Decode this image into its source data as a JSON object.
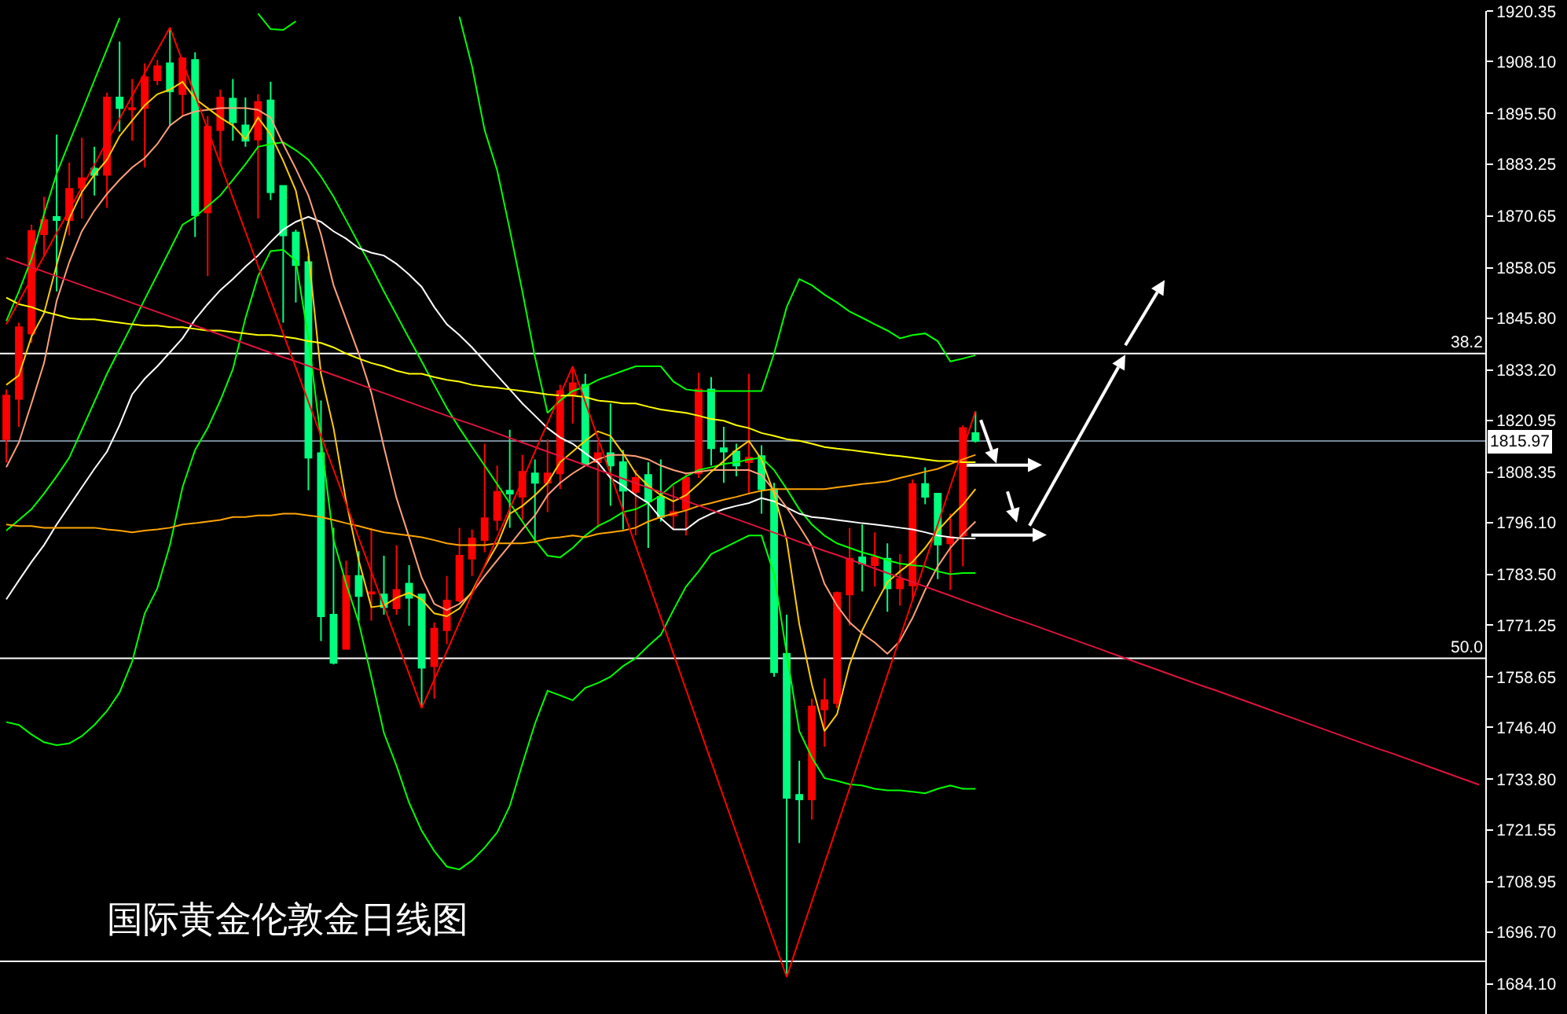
{
  "chart_data": {
    "type": "candlestick",
    "title": "国际黄金伦敦金日线图",
    "categories": [
      null,
      null,
      null,
      null,
      null,
      null,
      null,
      null,
      null,
      null,
      null,
      null,
      null,
      null,
      null,
      null,
      null,
      null,
      null,
      null,
      null,
      null,
      null,
      null,
      null,
      null,
      null,
      null,
      null,
      null,
      null,
      null,
      null,
      null,
      null,
      null,
      null,
      null,
      null,
      null,
      null,
      null,
      null,
      null,
      null,
      null,
      null,
      null,
      null,
      null,
      null,
      null,
      null,
      null,
      null,
      null,
      null,
      null,
      null,
      null,
      null,
      null,
      null,
      null,
      null,
      null,
      null,
      null,
      null,
      null,
      null,
      null,
      null,
      null,
      null,
      null,
      null,
      null,
      null,
      null,
      null,
      null,
      null,
      null,
      null,
      null,
      null,
      null,
      null,
      null,
      null,
      null,
      null,
      null,
      null,
      null,
      null,
      null,
      null,
      null,
      null,
      null,
      null,
      null,
      null,
      null,
      null,
      null,
      null,
      null,
      null,
      null,
      null,
      null,
      null,
      null,
      null,
      null
    ],
    "ohlc": [
      [
        1816.4,
        1828.5,
        1810.7,
        1827.0
      ],
      [
        1826.2,
        1844.7,
        1819.4,
        1843.6
      ],
      [
        1842.1,
        1868.5,
        1839.8,
        1867.0
      ],
      [
        1866.2,
        1875.3,
        1860.9,
        1869.6
      ],
      [
        1870.4,
        1890.4,
        1852.3,
        1869.6
      ],
      [
        1869.6,
        1883.6,
        1865.9,
        1877.2
      ],
      [
        1877.5,
        1889.6,
        1870.0,
        1879.8
      ],
      [
        1882.1,
        1887.4,
        1875.6,
        1880.6
      ],
      [
        1880.6,
        1900.6,
        1872.6,
        1899.4
      ],
      [
        1899.4,
        1913.0,
        1891.1,
        1896.8
      ],
      [
        1896.5,
        1903.9,
        1888.9,
        1896.8
      ],
      [
        1896.8,
        1907.7,
        1882.4,
        1904.3
      ],
      [
        1903.6,
        1908.5,
        1902.4,
        1907.0
      ],
      [
        1907.7,
        1916.4,
        1892.6,
        1900.9
      ],
      [
        1900.2,
        1909.2,
        1894.9,
        1908.9
      ],
      [
        1908.5,
        1910.4,
        1865.5,
        1870.8
      ],
      [
        1871.5,
        1894.9,
        1856.0,
        1892.3
      ],
      [
        1891.5,
        1901.3,
        1883.6,
        1899.4
      ],
      [
        1899.1,
        1903.9,
        1888.9,
        1893.4
      ],
      [
        1892.6,
        1899.4,
        1887.4,
        1888.9
      ],
      [
        1889.2,
        1900.2,
        1870.0,
        1898.3
      ],
      [
        1898.7,
        1903.2,
        1874.5,
        1876.4
      ],
      [
        1877.9,
        1877.9,
        1844.7,
        1865.9
      ],
      [
        1866.6,
        1867.3,
        1849.6,
        1858.7
      ],
      [
        1859.4,
        1860.9,
        1804.0,
        1811.9
      ],
      [
        1813.0,
        1825.8,
        1767.4,
        1773.4
      ],
      [
        1773.8,
        1794.9,
        1761.7,
        1762.1
      ],
      [
        1765.5,
        1786.9,
        1765.5,
        1783.2
      ],
      [
        1783.2,
        1789.2,
        1772.3,
        1778.3
      ],
      [
        1778.9,
        1794.9,
        1772.3,
        1779.2
      ],
      [
        1778.7,
        1788.1,
        1773.8,
        1775.6
      ],
      [
        1775.3,
        1790.7,
        1773.8,
        1779.8
      ],
      [
        1781.3,
        1785.8,
        1771.1,
        1777.9
      ],
      [
        1778.7,
        1778.7,
        1751.1,
        1760.9
      ],
      [
        1761.3,
        1771.9,
        1753.4,
        1770.4
      ],
      [
        1770.0,
        1783.2,
        1766.6,
        1777.2
      ],
      [
        1777.2,
        1794.9,
        1776.8,
        1788.1
      ],
      [
        1787.4,
        1794.5,
        1783.2,
        1792.3
      ],
      [
        1791.9,
        1815.3,
        1788.9,
        1797.2
      ],
      [
        1796.8,
        1810.0,
        1794.2,
        1803.6
      ],
      [
        1803.9,
        1818.7,
        1794.9,
        1803.2
      ],
      [
        1802.4,
        1812.6,
        1796.8,
        1808.5
      ],
      [
        1808.1,
        1811.5,
        1791.1,
        1805.8
      ],
      [
        1805.8,
        1816.4,
        1798.7,
        1808.1
      ],
      [
        1808.1,
        1829.6,
        1804.3,
        1828.1
      ],
      [
        1827.3,
        1834.1,
        1820.2,
        1830.0
      ],
      [
        1829.6,
        1832.3,
        1810.4,
        1810.4
      ],
      [
        1810.8,
        1815.6,
        1794.9,
        1813.0
      ],
      [
        1813.0,
        1825.1,
        1800.2,
        1810.0
      ],
      [
        1810.8,
        1813.8,
        1794.5,
        1803.9
      ],
      [
        1803.6,
        1808.9,
        1793.0,
        1807.0
      ],
      [
        1807.7,
        1810.8,
        1790.0,
        1801.3
      ],
      [
        1802.4,
        1811.5,
        1796.4,
        1797.5
      ],
      [
        1797.9,
        1805.1,
        1794.5,
        1798.7
      ],
      [
        1799.4,
        1808.1,
        1793.0,
        1807.0
      ],
      [
        1808.1,
        1832.6,
        1807.0,
        1828.5
      ],
      [
        1828.5,
        1831.5,
        1810.0,
        1814.2
      ],
      [
        1814.2,
        1819.4,
        1805.8,
        1813.4
      ],
      [
        1813.4,
        1815.3,
        1807.4,
        1810.0
      ],
      [
        1810.8,
        1832.3,
        1803.2,
        1811.9
      ],
      [
        1812.3,
        1814.9,
        1798.3,
        1804.3
      ],
      [
        1804.3,
        1805.8,
        1758.7,
        1759.8
      ],
      [
        1764.3,
        1773.8,
        1685.8,
        1729.3
      ],
      [
        1730.0,
        1738.3,
        1718.3,
        1728.9
      ],
      [
        1728.9,
        1753.4,
        1724.0,
        1751.5
      ],
      [
        1750.8,
        1758.3,
        1741.7,
        1753.0
      ],
      [
        1752.3,
        1779.4,
        1751.1,
        1779.1
      ],
      [
        1778.7,
        1794.9,
        1771.1,
        1787.4
      ],
      [
        1787.7,
        1795.7,
        1779.4,
        1786.2
      ],
      [
        1785.8,
        1793.8,
        1780.6,
        1787.7
      ],
      [
        1787.4,
        1791.1,
        1774.5,
        1780.2
      ],
      [
        1780.2,
        1788.5,
        1776.0,
        1782.4
      ],
      [
        1780.9,
        1806.6,
        1777.5,
        1805.5
      ],
      [
        1805.5,
        1809.6,
        1800.6,
        1802.4
      ],
      [
        1803.2,
        1803.2,
        1782.4,
        1790.8
      ],
      [
        1791.1,
        1798.3,
        1779.8,
        1792.6
      ],
      [
        1793.0,
        1819.8,
        1785.5,
        1819.1
      ],
      [
        1817.9,
        1823.2,
        1815.6,
        1816.0
      ],
      null,
      null,
      null,
      null,
      null,
      null,
      null,
      null,
      null,
      null,
      null,
      null,
      null,
      null,
      null,
      null,
      null,
      null,
      null,
      null,
      null,
      null,
      null,
      null,
      null,
      null,
      null,
      null,
      null,
      null,
      null,
      null,
      null,
      null,
      null,
      null,
      null,
      null,
      null,
      null
    ],
    "colors": [
      "#ff0000",
      "#ff0000",
      "#ff0000",
      "#ff0000",
      "#00ff7f",
      "#ff0000",
      "#ff0000",
      "#00ff7f",
      "#ff0000",
      "#00ff7f",
      "#ff0000",
      "#ff0000",
      "#ff0000",
      "#00ff7f",
      "#ff0000",
      "#00ff7f",
      "#ff0000",
      "#ff0000",
      "#00ff7f",
      "#00ff7f",
      "#ff0000",
      "#00ff7f",
      "#00ff7f",
      "#00ff7f",
      "#00ff7f",
      "#00ff7f",
      "#00ff7f",
      "#ff0000",
      "#00ff7f",
      "#ff0000",
      "#00ff7f",
      "#ff0000",
      "#00ff7f",
      "#00ff7f",
      "#ff0000",
      "#ff0000",
      "#ff0000",
      "#ff0000",
      "#ff0000",
      "#ff0000",
      "#00ff7f",
      "#ff0000",
      "#00ff7f",
      "#ff0000",
      "#ff0000",
      "#ff0000",
      "#00ff7f",
      "#ff0000",
      "#00ff7f",
      "#00ff7f",
      "#ff0000",
      "#00ff7f",
      "#00ff7f",
      "#ff0000",
      "#ff0000",
      "#ff0000",
      "#00ff7f",
      "#00ff7f",
      "#00ff7f",
      "#ff0000",
      "#00ff7f",
      "#00ff7f",
      "#00ff7f",
      "#00ff7f",
      "#ff0000",
      "#ff0000",
      "#ff0000",
      "#ff0000",
      "#00ff7f",
      "#ff0000",
      "#00ff7f",
      "#ff0000",
      "#ff0000",
      "#00ff7f",
      "#00ff7f",
      "#ff0000",
      "#ff0000",
      "#00ff7f",
      null,
      null,
      null,
      null,
      null,
      null,
      null,
      null,
      null,
      null,
      null,
      null,
      null,
      null,
      null,
      null,
      null,
      null,
      null,
      null,
      null,
      null,
      null,
      null,
      null,
      null,
      null,
      null,
      null,
      null,
      null,
      null,
      null,
      null,
      null,
      null,
      null,
      null,
      null,
      null
    ],
    "series": [
      {
        "type": "line",
        "color": "#00ff00",
        "values": [
          1845.1,
          1852.3,
          1860.2,
          1871.1,
          1880.9,
          1888.5,
          1896.0,
          1903.6,
          1911.1,
          1918.7,
          null,
          null,
          null,
          null,
          null,
          null,
          null,
          null,
          null,
          null,
          1919.8,
          1916.0,
          1915.8,
          1917.9,
          null,
          null,
          null,
          null,
          null,
          null,
          null,
          null,
          null,
          null,
          null,
          null,
          1919.0,
          1907.0,
          1891.5,
          1881.7,
          1867.3,
          1852.3,
          1836.4,
          1822.8,
          1825.8,
          1828.1,
          1829.2,
          1830.8,
          1831.9,
          1833.0,
          1834.1,
          1834.1,
          1834.1,
          1830.4,
          1828.5,
          1828.1,
          1828.1,
          1828.1,
          1828.1,
          1828.1,
          1828.1,
          1837.2,
          1848.5,
          1855.3,
          1853.8,
          1851.5,
          1849.6,
          1847.4,
          1845.9,
          1844.3,
          1842.8,
          1840.9,
          1841.7,
          1842.1,
          1840.2,
          1835.3,
          1836.0,
          1836.8,
          null,
          null,
          null,
          null,
          null,
          null,
          null,
          null,
          null,
          null,
          null,
          null,
          null,
          null,
          null,
          null,
          null,
          null,
          null,
          null,
          null,
          null,
          null,
          null,
          null,
          null,
          null,
          null,
          null,
          null,
          null,
          null,
          null,
          null,
          null,
          null,
          null,
          null,
          null,
          null
        ]
      },
      {
        "type": "line",
        "color": "#00ff00",
        "values": [
          1794.2,
          1796.8,
          1799.4,
          1803.2,
          1807.4,
          1811.9,
          1818.7,
          1825.5,
          1832.3,
          1838.3,
          1844.3,
          1850.4,
          1856.4,
          1862.4,
          1868.5,
          1870.4,
          1873.0,
          1875.6,
          1879.4,
          1883.2,
          1887.4,
          1888.1,
          1888.5,
          1886.6,
          1884.3,
          1880.2,
          1875.3,
          1869.6,
          1863.9,
          1858.3,
          1852.3,
          1846.6,
          1840.9,
          1835.3,
          1829.6,
          1824.0,
          1819.1,
          1814.5,
          1810.0,
          1805.5,
          1800.9,
          1796.4,
          1791.9,
          1788.1,
          1787.7,
          1790.0,
          1793.0,
          1795.3,
          1796.8,
          1798.7,
          1799.4,
          1800.9,
          1802.8,
          1805.5,
          1807.4,
          1808.9,
          1809.6,
          1810.4,
          1810.8,
          1811.5,
          1811.9,
          1808.9,
          1804.3,
          1799.4,
          1795.7,
          1793.0,
          1791.1,
          1790.0,
          1788.9,
          1788.1,
          1787.0,
          1786.2,
          1785.8,
          1785.5,
          1784.3,
          1783.6,
          1783.9,
          1783.9,
          null,
          null,
          null,
          null,
          null,
          null,
          null,
          null,
          null,
          null,
          null,
          null,
          null,
          null,
          null,
          null,
          null,
          null,
          null,
          null,
          null,
          null,
          null,
          null,
          null,
          null,
          null,
          null,
          null,
          null,
          null,
          null,
          null,
          null,
          null,
          null,
          null,
          null,
          null,
          null
        ]
      },
      {
        "type": "line",
        "color": "#00ff00",
        "values": [
          1747.7,
          1747.0,
          1744.7,
          1742.8,
          1742.1,
          1742.5,
          1744.3,
          1747.0,
          1750.4,
          1754.9,
          1762.4,
          1774.1,
          1780.2,
          1790.7,
          1804.7,
          1813.8,
          1819.1,
          1825.8,
          1833.4,
          1845.8,
          1856.0,
          1862.1,
          1862.4,
          1859.8,
          1840.9,
          1816.4,
          1791.9,
          1781.3,
          1771.9,
          1758.7,
          1745.1,
          1737.1,
          1728.1,
          1721.3,
          1716.4,
          1712.6,
          1711.9,
          1714.1,
          1717.2,
          1720.9,
          1727.3,
          1737.5,
          1747.3,
          1755.3,
          1754.2,
          1753.0,
          1756.0,
          1757.2,
          1758.7,
          1761.3,
          1763.2,
          1766.2,
          1768.9,
          1774.9,
          1780.6,
          1784.3,
          1788.5,
          1790.0,
          1791.5,
          1793.0,
          1793.0,
          1783.6,
          1764.3,
          1745.5,
          1739.1,
          1734.1,
          1733.4,
          1732.6,
          1732.3,
          1731.5,
          1731.1,
          1731.1,
          1730.8,
          1730.4,
          1731.5,
          1732.3,
          1731.5,
          1731.5,
          null,
          null,
          null,
          null,
          null,
          null,
          null,
          null,
          null,
          null,
          null,
          null,
          null,
          null,
          null,
          null,
          null,
          null,
          null,
          null,
          null,
          null,
          null,
          null,
          null,
          null,
          null,
          null,
          null,
          null,
          null,
          null,
          null,
          null,
          null,
          null,
          null,
          null,
          null,
          null
        ]
      },
      {
        "type": "line",
        "color": "#ffffff",
        "values": [
          1777.5,
          1782.1,
          1786.6,
          1790.7,
          1795.7,
          1800.2,
          1804.7,
          1809.2,
          1813.4,
          1819.8,
          1827.3,
          1831.1,
          1834.1,
          1837.5,
          1840.9,
          1845.5,
          1849.2,
          1852.6,
          1855.3,
          1858.3,
          1861.0,
          1864.3,
          1867.3,
          1869.2,
          1870.4,
          1869.2,
          1866.9,
          1865.1,
          1862.8,
          1861.7,
          1861.0,
          1859.0,
          1856.4,
          1853.4,
          1848.5,
          1844.3,
          1841.7,
          1838.7,
          1835.3,
          1831.9,
          1828.5,
          1825.1,
          1822.1,
          1819.1,
          1816.8,
          1815.3,
          1813.0,
          1810.8,
          1807.0,
          1805.1,
          1802.8,
          1800.9,
          1797.2,
          1794.5,
          1794.5,
          1796.8,
          1798.3,
          1799.4,
          1800.2,
          1800.9,
          1802.1,
          1801.3,
          1799.8,
          1798.3,
          1797.5,
          1797.2,
          1796.8,
          1796.4,
          1796.0,
          1795.7,
          1795.3,
          1794.9,
          1794.5,
          1793.8,
          1793.0,
          1792.6,
          1792.3,
          1792.3,
          null,
          null,
          null,
          null,
          null,
          null,
          null,
          null,
          null,
          null,
          null,
          null,
          null,
          null,
          null,
          null,
          null,
          null,
          null,
          null,
          null,
          null,
          null,
          null,
          null,
          null,
          null,
          null,
          null,
          null,
          null,
          null,
          null,
          null,
          null,
          null,
          null,
          null,
          null,
          null
        ]
      },
      {
        "type": "line",
        "color": "#ffa07a",
        "values": [
          1809.6,
          1815.6,
          1825.1,
          1834.9,
          1850.0,
          1859.4,
          1866.9,
          1871.9,
          1876.0,
          1879.4,
          1882.4,
          1884.7,
          1888.1,
          1892.6,
          1894.9,
          1896.0,
          1896.4,
          1896.8,
          1896.8,
          1896.8,
          1896.4,
          1894.5,
          1888.1,
          1882.1,
          1875.6,
          1866.2,
          1853.8,
          1845.5,
          1837.2,
          1827.7,
          1814.5,
          1802.1,
          1792.6,
          1782.8,
          1776.4,
          1774.9,
          1776.4,
          1779.1,
          1783.2,
          1787.0,
          1790.7,
          1794.5,
          1797.9,
          1802.8,
          1805.8,
          1808.1,
          1810.0,
          1811.5,
          1812.6,
          1812.6,
          1812.3,
          1811.5,
          1810.0,
          1808.9,
          1808.1,
          1808.5,
          1808.9,
          1808.9,
          1808.9,
          1808.9,
          1807.7,
          1803.9,
          1799.8,
          1795.3,
          1790.4,
          1781.3,
          1776.0,
          1771.9,
          1769.2,
          1767.0,
          1764.3,
          1767.4,
          1773.0,
          1779.8,
          1785.5,
          1790.0,
          1793.4,
          1796.4,
          null,
          null,
          null,
          null,
          null,
          null,
          null,
          null,
          null,
          null,
          null,
          null,
          null,
          null,
          null,
          null,
          null,
          null,
          null,
          null,
          null,
          null,
          null,
          null,
          null,
          null,
          null,
          null,
          null,
          null,
          null,
          null,
          null,
          null,
          null,
          null,
          null,
          null,
          null,
          null
        ]
      },
      {
        "type": "line",
        "color": "#ffcc00",
        "values": [
          1829.6,
          1831.9,
          1841.3,
          1847.0,
          1858.7,
          1870.0,
          1876.4,
          1880.6,
          1884.3,
          1890.0,
          1893.8,
          1897.5,
          1900.2,
          1901.3,
          1903.2,
          1899.1,
          1896.8,
          1894.5,
          1892.6,
          1889.2,
          1894.5,
          1890.4,
          1884.0,
          1876.8,
          1861.7,
          1832.3,
          1819.1,
          1801.3,
          1787.0,
          1775.6,
          1776.0,
          1777.9,
          1779.1,
          1777.5,
          1774.1,
          1773.4,
          1775.3,
          1779.4,
          1785.5,
          1790.7,
          1798.3,
          1800.2,
          1802.8,
          1805.8,
          1810.8,
          1813.4,
          1816.0,
          1818.3,
          1817.2,
          1813.0,
          1808.1,
          1805.1,
          1802.8,
          1801.3,
          1802.8,
          1805.5,
          1808.5,
          1811.1,
          1813.8,
          1816.0,
          1811.5,
          1803.2,
          1791.9,
          1771.5,
          1756.8,
          1745.5,
          1749.6,
          1761.7,
          1770.0,
          1776.0,
          1781.7,
          1784.3,
          1786.6,
          1790.0,
          1794.2,
          1797.5,
          1800.5,
          1804.3,
          null,
          null,
          null,
          null,
          null,
          null,
          null,
          null,
          null,
          null,
          null,
          null,
          null,
          null,
          null,
          null,
          null,
          null,
          null,
          null,
          null,
          null,
          null,
          null,
          null,
          null,
          null,
          null,
          null,
          null,
          null,
          null,
          null,
          null,
          null,
          null,
          null,
          null,
          null,
          null
        ]
      },
      {
        "type": "line",
        "color": "#ffff00",
        "values": [
          1850.8,
          1849.2,
          1848.5,
          1847.4,
          1846.6,
          1845.8,
          1845.5,
          1845.5,
          1845.1,
          1844.7,
          1844.3,
          1844.0,
          1844.0,
          1843.6,
          1843.6,
          1843.2,
          1842.8,
          1842.8,
          1842.4,
          1842.1,
          1841.7,
          1841.7,
          1841.3,
          1840.9,
          1840.2,
          1839.8,
          1838.7,
          1837.2,
          1836.0,
          1834.9,
          1834.1,
          1833.0,
          1832.3,
          1832.3,
          1831.5,
          1830.8,
          1830.4,
          1829.6,
          1829.2,
          1828.9,
          1828.5,
          1828.1,
          1827.7,
          1827.3,
          1827.0,
          1827.0,
          1826.6,
          1825.8,
          1825.5,
          1825.1,
          1825.1,
          1824.3,
          1823.6,
          1823.2,
          1822.8,
          1822.1,
          1821.3,
          1820.9,
          1819.8,
          1819.1,
          1817.9,
          1817.2,
          1816.4,
          1816.0,
          1815.3,
          1814.5,
          1814.1,
          1813.8,
          1813.4,
          1813.0,
          1812.6,
          1812.3,
          1811.9,
          1811.5,
          1811.1,
          1811.1,
          1810.8,
          1810.8,
          null,
          null,
          null,
          null,
          null,
          null,
          null,
          null,
          null,
          null,
          null,
          null,
          null,
          null,
          null,
          null,
          null,
          null,
          null,
          null,
          null,
          null,
          null,
          null,
          null,
          null,
          null,
          null,
          null,
          null,
          null,
          null,
          null,
          null,
          null,
          null,
          null,
          null,
          null,
          null
        ]
      },
      {
        "type": "line",
        "color": "#ffa500",
        "values": [
          1795.7,
          1795.3,
          1795.3,
          1794.9,
          1794.9,
          1794.9,
          1794.9,
          1794.9,
          1794.5,
          1794.2,
          1793.8,
          1794.2,
          1794.5,
          1794.9,
          1795.7,
          1796.0,
          1796.4,
          1796.8,
          1797.5,
          1797.5,
          1797.9,
          1797.9,
          1798.3,
          1798.3,
          1797.9,
          1797.5,
          1796.8,
          1796.0,
          1795.3,
          1794.5,
          1793.8,
          1793.4,
          1793.0,
          1792.6,
          1791.9,
          1791.1,
          1790.7,
          1790.7,
          1790.7,
          1791.1,
          1791.1,
          1791.1,
          1791.5,
          1792.3,
          1792.6,
          1793.0,
          1792.6,
          1793.4,
          1793.8,
          1794.2,
          1794.9,
          1796.4,
          1797.5,
          1798.3,
          1799.1,
          1800.2,
          1800.9,
          1801.7,
          1802.4,
          1803.2,
          1803.9,
          1804.3,
          1804.3,
          1804.3,
          1804.3,
          1804.3,
          1804.7,
          1805.1,
          1805.5,
          1805.8,
          1806.2,
          1807.0,
          1807.7,
          1808.5,
          1809.2,
          1810.4,
          1811.5,
          1812.6,
          null,
          null,
          null,
          null,
          null,
          null,
          null,
          null,
          null,
          null,
          null,
          null,
          null,
          null,
          null,
          null,
          null,
          null,
          null,
          null,
          null,
          null,
          null,
          null,
          null,
          null,
          null,
          null,
          null,
          null,
          null,
          null,
          null,
          null,
          null,
          null,
          null,
          null,
          null,
          null
        ]
      },
      {
        "type": "line",
        "color": "#dc143c",
        "values": [
          1860.4,
          1859.3,
          1858.2,
          1857.1,
          1856.0,
          1854.9,
          1853.8,
          1852.7,
          1851.7,
          1850.6,
          1849.5,
          1848.4,
          1847.3,
          1846.2,
          1845.1,
          1844.0,
          1842.9,
          1841.8,
          1840.7,
          1839.6,
          1838.5,
          1837.4,
          1836.3,
          1835.3,
          1834.2,
          1833.1,
          1832.0,
          1830.9,
          1829.8,
          1828.7,
          1827.6,
          1826.5,
          1825.4,
          1824.3,
          1823.2,
          1822.1,
          1821.0,
          1820.0,
          1818.9,
          1817.8,
          1816.7,
          1815.6,
          1814.5,
          1813.4,
          1812.3,
          1811.2,
          1810.1,
          1809.0,
          1807.9,
          1806.8,
          1805.7,
          1804.6,
          1803.6,
          1802.5,
          1801.4,
          1800.3,
          1799.2,
          1798.1,
          1797.0,
          1795.9,
          1794.8,
          1793.7,
          1792.6,
          1791.5,
          1790.4,
          1789.3,
          1788.3,
          1787.2,
          1786.1,
          1785.0,
          1783.9,
          1782.8,
          1781.7,
          1780.6,
          1779.5,
          1778.4,
          1777.3,
          1776.2,
          1775.1,
          1774.0,
          1772.9,
          1771.9,
          1770.8,
          1769.7,
          1768.6,
          1767.5,
          1766.4,
          1765.3,
          1764.2,
          1763.1,
          1762.0,
          1760.9,
          1759.8,
          1758.7,
          1757.6,
          1756.5,
          1755.5,
          1754.4,
          1753.3,
          1752.2,
          1751.1,
          1750.0,
          1748.9,
          1747.8,
          1746.7,
          1745.6,
          1744.5,
          1743.4,
          1742.3,
          1741.2,
          1740.2,
          1739.1,
          1738.0,
          1736.9,
          1735.8,
          1734.7,
          1733.6,
          1732.5
        ]
      },
      {
        "type": "line",
        "color": "#ff0000",
        "values": [
          1844.3,
          1849.8,
          1855.4,
          1860.9,
          1866.5,
          1872.0,
          1877.6,
          1883.1,
          1888.7,
          1894.2,
          1899.8,
          1905.3,
          1910.9,
          1916.4,
          1908.1,
          1899.9,
          1891.6,
          1883.3,
          1875.1,
          1866.8,
          1858.5,
          1850.3,
          1842.0,
          1833.8,
          1825.5,
          1817.2,
          1809.0,
          1800.7,
          1792.4,
          1784.2,
          1775.9,
          1767.6,
          1759.4,
          1751.1,
          1758.0,
          1764.9,
          1771.9,
          1778.8,
          1785.7,
          1792.6,
          1799.5,
          1806.4,
          1813.4,
          1820.3,
          1827.2,
          1834.1,
          1825.4,
          1816.7,
          1807.9,
          1799.2,
          1790.5,
          1781.8,
          1773.1,
          1764.3,
          1755.6,
          1746.9,
          1738.1,
          1729.4,
          1720.7,
          1712.0,
          1703.3,
          1694.5,
          1685.8,
          1695.0,
          1704.1,
          1713.3,
          1722.4,
          1731.6,
          1740.8,
          1749.9,
          1759.1,
          1768.2,
          1777.4,
          1786.6,
          1795.7,
          1804.9,
          1814.0,
          1823.2,
          null,
          null,
          null,
          null,
          null,
          null,
          null,
          null,
          null,
          null,
          null,
          null,
          null,
          null,
          null,
          null,
          null,
          null,
          null,
          null,
          null,
          null,
          null,
          null,
          null,
          null,
          null,
          null,
          null,
          null,
          null,
          null,
          null,
          null,
          null,
          null,
          null,
          null,
          null,
          null
        ]
      }
    ],
    "ylim": [
      1676.8,
      1920.4
    ],
    "yticks": [
      {
        "value": 1920.35,
        "label": "1920.35"
      },
      {
        "value": 1908.1,
        "label": "1908.10"
      },
      {
        "value": 1895.5,
        "label": "1895.50"
      },
      {
        "value": 1883.25,
        "label": "1883.25"
      },
      {
        "value": 1870.65,
        "label": "1870.65"
      },
      {
        "value": 1858.05,
        "label": "1858.05"
      },
      {
        "value": 1845.8,
        "label": "1845.80"
      },
      {
        "value": 1833.2,
        "label": "1833.20"
      },
      {
        "value": 1820.95,
        "label": "1820.95"
      },
      {
        "value": 1808.35,
        "label": "1808.35"
      },
      {
        "value": 1796.1,
        "label": "1796.10"
      },
      {
        "value": 1783.5,
        "label": "1783.50"
      },
      {
        "value": 1771.25,
        "label": "1771.25"
      },
      {
        "value": 1758.65,
        "label": "1758.65"
      },
      {
        "value": 1746.4,
        "label": "1746.40"
      },
      {
        "value": 1733.8,
        "label": "1733.80"
      },
      {
        "value": 1721.55,
        "label": "1721.55"
      },
      {
        "value": 1708.95,
        "label": "1708.95"
      },
      {
        "value": 1696.7,
        "label": "1696.70"
      },
      {
        "value": 1684.1,
        "label": "1684.10"
      }
    ],
    "tick_labels": "y",
    "ref_lines": [
      {
        "axis": "y",
        "value": 1837.2,
        "color": "#ffffff"
      },
      {
        "axis": "y",
        "value": 1815.97,
        "label": "1815.97",
        "color": "#778899"
      },
      {
        "axis": "y",
        "value": 1763.2,
        "color": "#ffffff"
      },
      {
        "axis": "y",
        "value": 1689.6,
        "color": "#ffffff"
      }
    ],
    "annotations": [
      "38.2",
      "50.0"
    ]
  }
}
